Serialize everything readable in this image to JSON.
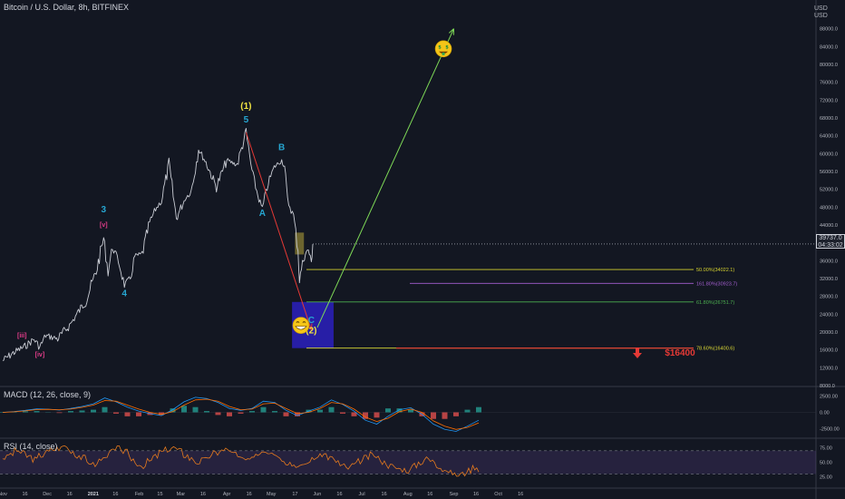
{
  "header": {
    "title": "Bitcoin / U.S. Dollar, 8h, BITFINEX",
    "currency_line1": "USD",
    "currency_line2": "USD"
  },
  "price_badge": {
    "price": "39737.0",
    "countdown": "04:33:02"
  },
  "indicators": {
    "macd_label": "MACD (12, 26, close, 9)",
    "rsi_label": "RSI (14, close)"
  },
  "chart_data": [
    {
      "type": "line",
      "name": "price",
      "x_ticks": [
        "Nov",
        "16",
        "Dec",
        "16",
        "2021",
        "16",
        "Feb",
        "15",
        "Mar",
        "16",
        "Apr",
        "16",
        "May",
        "17",
        "Jun",
        "16",
        "Jul",
        "16",
        "Aug",
        "16",
        "Sep",
        "16",
        "Oct",
        "16"
      ],
      "y_ticks": [
        "88000.0",
        "84000.0",
        "80000.0",
        "76000.0",
        "72000.0",
        "68000.0",
        "64000.0",
        "60000.0",
        "56000.0",
        "52000.0",
        "48000.0",
        "44000.0",
        "40000.0",
        "36000.0",
        "32000.0",
        "28000.0",
        "24000.0",
        "20000.0",
        "16000.0",
        "12000.0",
        "8000.0"
      ],
      "ylim": [
        8000,
        92000
      ],
      "price_path": [
        [
          "Nov 1",
          13600
        ],
        [
          "Nov 8",
          15300
        ],
        [
          "Nov 16",
          16800
        ],
        [
          "Nov 22",
          18400
        ],
        [
          "Nov 26",
          16600
        ],
        [
          "Nov 30",
          19200
        ],
        [
          "Dec 8",
          18500
        ],
        [
          "Dec 16",
          21500
        ],
        [
          "Dec 20",
          23500
        ],
        [
          "Dec 27",
          27000
        ],
        [
          "Jan 3",
          33500
        ],
        [
          "Jan 8",
          41000
        ],
        [
          "Jan 11",
          33500
        ],
        [
          "Jan 14",
          39000
        ],
        [
          "Jan 18",
          36000
        ],
        [
          "Jan 22",
          30500
        ],
        [
          "Jan 26",
          32000
        ],
        [
          "Jan 29",
          37000
        ],
        [
          "Feb 3",
          37500
        ],
        [
          "Feb 8",
          44500
        ],
        [
          "Feb 12",
          47500
        ],
        [
          "Feb 16",
          49500
        ],
        [
          "Feb 21",
          57500
        ],
        [
          "Feb 26",
          45500
        ],
        [
          "Mar 4",
          50000
        ],
        [
          "Mar 8",
          51500
        ],
        [
          "Mar 13",
          61000
        ],
        [
          "Mar 18",
          58000
        ],
        [
          "Mar 25",
          52500
        ],
        [
          "Apr 1",
          58500
        ],
        [
          "Apr 8",
          57500
        ],
        [
          "Apr 14",
          64800
        ],
        [
          "Apr 18",
          56000
        ],
        [
          "Apr 22",
          50500
        ],
        [
          "Apr 25",
          47500
        ],
        [
          "Apr 29",
          53500
        ],
        [
          "May 3",
          57000
        ],
        [
          "May 8",
          58500
        ],
        [
          "May 10",
          57000
        ],
        [
          "May 12",
          49500
        ],
        [
          "May 16",
          46000
        ],
        [
          "May 19",
          38500
        ],
        [
          "May 20",
          31500
        ],
        [
          "May 22",
          35500
        ],
        [
          "May 24",
          37500
        ],
        [
          "May 26",
          38500
        ],
        [
          "May 28",
          35500
        ],
        [
          "May 29",
          39700
        ]
      ],
      "waves": [
        {
          "label": "[iii]",
          "date": "Nov 14",
          "price": 18800
        },
        {
          "label": "[iv]",
          "date": "Nov 26",
          "price": 14500
        },
        {
          "label": "[v]",
          "date": "Jan 8",
          "price": 43600
        },
        {
          "label": "3",
          "date": "Jan 8",
          "price": 46800
        },
        {
          "label": "4",
          "date": "Jan 22",
          "price": 28000
        },
        {
          "label": "(1)",
          "date": "Apr 14",
          "price": 70000
        },
        {
          "label": "5",
          "date": "Apr 14",
          "price": 67000
        },
        {
          "label": "A",
          "date": "Apr 25",
          "price": 46000
        },
        {
          "label": "B",
          "date": "May 8",
          "price": 60800
        },
        {
          "label": "C",
          "date": "May 28",
          "price": 22000
        },
        {
          "label": "(2)",
          "date": "May 28",
          "price": 19700
        }
      ],
      "fib_levels": [
        {
          "label": "50.00%(34022.1)",
          "price": 34022.1,
          "color": "#d4d12e"
        },
        {
          "label": "161.80%(30923.7)",
          "price": 30923.7,
          "color": "#a45fd0"
        },
        {
          "label": "61.80%(26751.7)",
          "price": 26751.7,
          "color": "#4caf50"
        },
        {
          "label": "78.60%(16400.6)",
          "price": 16400.6,
          "color": "#e0dd35"
        }
      ],
      "target_label": "$16400",
      "target_box": {
        "from": "May 15",
        "to": "Jun 12",
        "high": 26751.7,
        "low": 16400.6
      },
      "highlight_box": {
        "from": "May 17",
        "to": "May 23",
        "high": 42300,
        "low": 37400
      },
      "projection": {
        "from_date": "Jun 1",
        "from_price": 21000,
        "to_date": "Sep 1",
        "to_price": 88000
      },
      "decline_arrow": {
        "from_date": "Apr 14",
        "from_price": 64800,
        "to_date": "May 28",
        "to_price": 20500
      },
      "emojis": [
        {
          "name": "money-face",
          "date": "Aug 25",
          "price": 83500
        },
        {
          "name": "grin-face",
          "date": "May 21",
          "price": 21500
        }
      ]
    },
    {
      "type": "line",
      "name": "macd",
      "y_ticks": [
        "2500.00",
        "0.00",
        "-2500.00"
      ],
      "ylim": [
        -3800,
        3800
      ],
      "series": [
        {
          "values": [
            0,
            120,
            300,
            520,
            480,
            350,
            600,
            900,
            1300,
            2200,
            1600,
            800,
            200,
            -200,
            -500,
            400,
            1600,
            2300,
            2100,
            1500,
            600,
            300,
            600,
            1700,
            1500,
            300,
            -500,
            200,
            800,
            1900,
            1200,
            200,
            -1200,
            -1800,
            -600,
            400,
            700,
            -300,
            -1800,
            -2600,
            -2900,
            -2100,
            -1200
          ]
        },
        {
          "values": [
            0,
            80,
            220,
            420,
            460,
            400,
            500,
            760,
            1100,
            1800,
            1700,
            1100,
            500,
            0,
            -300,
            100,
            1100,
            1900,
            2000,
            1700,
            900,
            400,
            500,
            1300,
            1400,
            600,
            -200,
            0,
            600,
            1500,
            1300,
            500,
            -700,
            -1400,
            -900,
            100,
            500,
            0,
            -1300,
            -2100,
            -2600,
            -2300,
            -1600
          ]
        }
      ],
      "histogram": [
        0,
        40,
        80,
        100,
        20,
        -50,
        100,
        140,
        200,
        400,
        -100,
        -300,
        -300,
        -200,
        -200,
        300,
        500,
        400,
        100,
        -200,
        -300,
        -100,
        100,
        400,
        100,
        -300,
        -300,
        200,
        200,
        400,
        -100,
        -300,
        -500,
        -400,
        300,
        300,
        200,
        -300,
        -500,
        -500,
        -300,
        200,
        400
      ]
    },
    {
      "type": "line",
      "name": "rsi",
      "y_ticks": [
        "75.00",
        "50.00",
        "25.00"
      ],
      "ylim": [
        15,
        90
      ],
      "band": [
        30,
        70
      ],
      "values": [
        58,
        64,
        70,
        66,
        60,
        55,
        62,
        68,
        72,
        74,
        78,
        70,
        62,
        58,
        50,
        46,
        55,
        63,
        70,
        74,
        68,
        56,
        48,
        44,
        52,
        60,
        68,
        72,
        75,
        70,
        62,
        56,
        50,
        54,
        60,
        66,
        70,
        72,
        65,
        58,
        52,
        60,
        66,
        71,
        69,
        64,
        56,
        50,
        46,
        42,
        48,
        55,
        60,
        64,
        58,
        52,
        44,
        40,
        46,
        52,
        58,
        63,
        57,
        50,
        44,
        40,
        38,
        36,
        44,
        50,
        56,
        52,
        44,
        38,
        32,
        28,
        30,
        36,
        42,
        38
      ]
    }
  ]
}
